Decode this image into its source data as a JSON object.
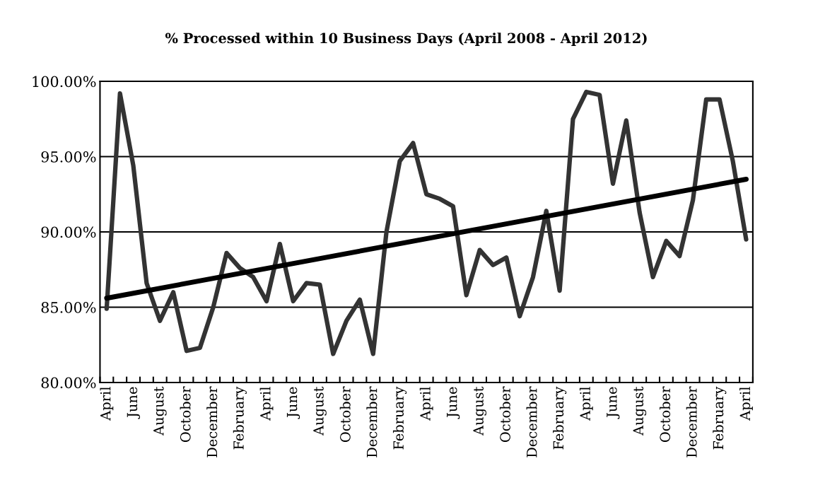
{
  "chart_data": {
    "type": "line",
    "title": "% Processed within 10 Business Days (April 2008 - April 2012)",
    "categories": [
      "April",
      null,
      "June",
      null,
      "August",
      null,
      "October",
      null,
      "December",
      null,
      "February",
      null,
      "April",
      null,
      "June",
      null,
      "August",
      null,
      "October",
      null,
      "December",
      null,
      "February",
      null,
      "April",
      null,
      "June",
      null,
      "August",
      null,
      "October",
      null,
      "December",
      null,
      "February",
      null,
      "April",
      null,
      "June",
      null,
      "August",
      null,
      "October",
      null,
      "December",
      null,
      "February",
      null,
      "April"
    ],
    "series": [
      {
        "color": "#333333",
        "values": [
          84.9,
          99.2,
          94.4,
          86.6,
          84.1,
          86.0,
          82.1,
          82.3,
          85.0,
          88.6,
          87.6,
          87.0,
          85.4,
          89.2,
          85.4,
          86.6,
          86.5,
          81.9,
          84.1,
          85.5,
          81.9,
          90.0,
          94.7,
          95.9,
          92.5,
          92.2,
          91.7,
          85.8,
          88.8,
          87.8,
          88.3,
          84.4,
          87.0,
          91.4,
          86.1,
          97.5,
          99.3,
          99.1,
          93.2,
          97.4,
          91.3,
          87.0,
          89.4,
          88.4,
          92.1,
          98.8,
          98.8,
          94.7,
          89.5
        ]
      },
      {
        "color": "#000000",
        "values": [
          85.6,
          null,
          null,
          null,
          null,
          null,
          null,
          null,
          null,
          null,
          null,
          null,
          null,
          null,
          null,
          null,
          null,
          null,
          null,
          null,
          null,
          null,
          null,
          null,
          null,
          null,
          null,
          null,
          null,
          null,
          null,
          null,
          null,
          null,
          null,
          null,
          null,
          null,
          null,
          null,
          null,
          null,
          null,
          null,
          null,
          null,
          null,
          null,
          93.5
        ]
      }
    ],
    "ylim": [
      80,
      100
    ],
    "yticks": [
      {
        "value": 80,
        "label": "80.00%"
      },
      {
        "value": 85,
        "label": "85.00%"
      },
      {
        "value": 90,
        "label": "90.00%"
      },
      {
        "value": 95,
        "label": "95.00%"
      },
      {
        "value": 100,
        "label": "100.00%"
      }
    ],
    "grid": "y"
  }
}
